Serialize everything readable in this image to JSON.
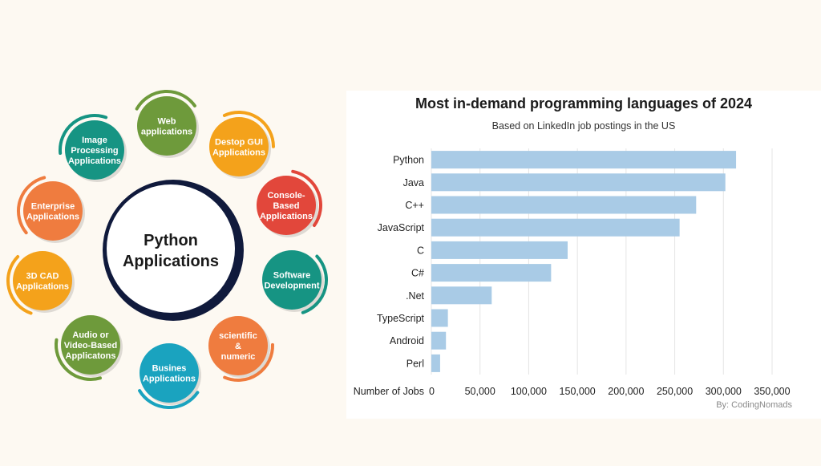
{
  "diagram": {
    "center": {
      "line1": "Python",
      "line2": "Applications",
      "ring_color": "#101a3c"
    },
    "nodes": [
      {
        "lines": [
          "Web",
          "applications"
        ],
        "color": "#6e9a3b"
      },
      {
        "lines": [
          "Destop GUI",
          "Applications"
        ],
        "color": "#f4a21b"
      },
      {
        "lines": [
          "Console-",
          "Based",
          "Applications"
        ],
        "color": "#e2473b"
      },
      {
        "lines": [
          "Software",
          "Development"
        ],
        "color": "#169483"
      },
      {
        "lines": [
          "scientific",
          "&",
          "numeric"
        ],
        "color": "#ef7c3f"
      },
      {
        "lines": [
          "Busines",
          "Applications"
        ],
        "color": "#1aa3bf"
      },
      {
        "lines": [
          "Audio or",
          "Video-Based",
          "Applicatons"
        ],
        "color": "#6e9a3b"
      },
      {
        "lines": [
          "3D CAD",
          "Applications"
        ],
        "color": "#f4a21b"
      },
      {
        "lines": [
          "Enterprise",
          "Applications"
        ],
        "color": "#ef7c3f"
      },
      {
        "lines": [
          "Image",
          "Processing",
          "Applications"
        ],
        "color": "#169483"
      }
    ]
  },
  "chart_data": {
    "type": "bar",
    "orientation": "horizontal",
    "title": "Most in-demand programming languages of 2024",
    "subtitle": "Based on LinkedIn job postings in the US",
    "xlabel": "Number of Jobs",
    "categories": [
      "Python",
      "Java",
      "C++",
      "JavaScript",
      "C",
      "C#",
      ".Net",
      "TypeScript",
      "Android",
      "Perl"
    ],
    "values": [
      313000,
      302000,
      272000,
      255000,
      140000,
      123000,
      62000,
      17000,
      15000,
      9000
    ],
    "xlim": [
      0,
      350000
    ],
    "xticks": [
      0,
      50000,
      100000,
      150000,
      200000,
      250000,
      300000,
      350000
    ],
    "xtick_labels": [
      "0",
      "50,000",
      "100,000",
      "150,000",
      "200,000",
      "250,000",
      "300,000",
      "350,000"
    ],
    "bar_color": "#a9cbe6",
    "grid": true,
    "credit": "By: CodingNomads"
  }
}
